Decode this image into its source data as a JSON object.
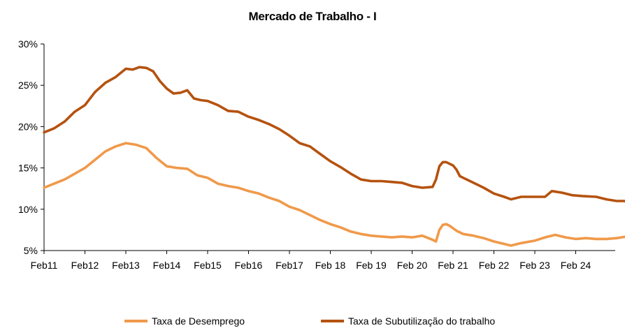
{
  "chart_data": {
    "type": "line",
    "title": "Mercado de Trabalho  -  I",
    "xlabel": "",
    "ylabel": "",
    "x_ticks": [
      "Feb11",
      "Feb12",
      "Feb13",
      "Feb14",
      "Feb15",
      "Feb16",
      "Feb17",
      "Feb 18",
      "Feb 19",
      "Feb 20",
      "Feb 21",
      "Feb 22",
      "Feb 23",
      "Feb 24"
    ],
    "ylim": [
      5,
      30
    ],
    "y_ticks": [
      "5%",
      "10%",
      "15%",
      "20%",
      "25%",
      "30%"
    ],
    "grid": "none",
    "legend_position": "bottom",
    "series": [
      {
        "name": "Taxa de Desemprego",
        "color": "#F0994A",
        "points": [
          [
            0,
            12.6
          ],
          [
            3,
            13.1
          ],
          [
            6,
            13.6
          ],
          [
            9,
            14.3
          ],
          [
            12,
            15.0
          ],
          [
            15,
            16.0
          ],
          [
            18,
            17.0
          ],
          [
            21,
            17.6
          ],
          [
            24,
            18.0
          ],
          [
            27,
            17.8
          ],
          [
            30,
            17.4
          ],
          [
            33,
            16.2
          ],
          [
            36,
            15.2
          ],
          [
            39,
            15.0
          ],
          [
            42,
            14.9
          ],
          [
            45,
            14.1
          ],
          [
            48,
            13.8
          ],
          [
            51,
            13.1
          ],
          [
            54,
            12.8
          ],
          [
            57,
            12.6
          ],
          [
            60,
            12.2
          ],
          [
            63,
            11.9
          ],
          [
            66,
            11.4
          ],
          [
            69,
            11.0
          ],
          [
            72,
            10.3
          ],
          [
            75,
            9.9
          ],
          [
            78,
            9.3
          ],
          [
            81,
            8.7
          ],
          [
            84,
            8.2
          ],
          [
            87,
            7.8
          ],
          [
            90,
            7.3
          ],
          [
            93,
            7.0
          ],
          [
            96,
            6.8
          ],
          [
            99,
            6.7
          ],
          [
            102,
            6.6
          ],
          [
            105,
            6.7
          ],
          [
            108,
            6.6
          ],
          [
            111,
            6.8
          ],
          [
            114,
            6.3
          ],
          [
            115,
            6.1
          ],
          [
            116,
            7.5
          ],
          [
            117,
            8.1
          ],
          [
            118,
            8.2
          ],
          [
            119,
            8.0
          ],
          [
            120,
            7.7
          ],
          [
            121,
            7.4
          ],
          [
            123,
            7.0
          ],
          [
            126,
            6.8
          ],
          [
            129,
            6.5
          ],
          [
            132,
            6.1
          ],
          [
            135,
            5.8
          ],
          [
            137,
            5.6
          ],
          [
            140,
            5.9
          ],
          [
            144,
            6.2
          ],
          [
            147,
            6.6
          ],
          [
            150,
            6.9
          ],
          [
            153,
            6.6
          ],
          [
            156,
            6.4
          ],
          [
            159,
            6.5
          ],
          [
            162,
            6.4
          ],
          [
            165,
            6.4
          ],
          [
            168,
            6.5
          ],
          [
            171,
            6.7
          ],
          [
            173,
            6.5
          ]
        ]
      },
      {
        "name": "Taxa de Subutilização do trabalho",
        "color": "#B5520F",
        "points": [
          [
            0,
            19.3
          ],
          [
            3,
            19.8
          ],
          [
            6,
            20.6
          ],
          [
            9,
            21.8
          ],
          [
            12,
            22.6
          ],
          [
            15,
            24.2
          ],
          [
            18,
            25.3
          ],
          [
            21,
            26.0
          ],
          [
            24,
            27.0
          ],
          [
            26,
            26.9
          ],
          [
            28,
            27.2
          ],
          [
            30,
            27.1
          ],
          [
            32,
            26.7
          ],
          [
            34,
            25.5
          ],
          [
            36,
            24.6
          ],
          [
            38,
            24.0
          ],
          [
            40,
            24.1
          ],
          [
            42,
            24.4
          ],
          [
            44,
            23.4
          ],
          [
            46,
            23.2
          ],
          [
            48,
            23.1
          ],
          [
            51,
            22.6
          ],
          [
            54,
            21.9
          ],
          [
            57,
            21.8
          ],
          [
            60,
            21.2
          ],
          [
            63,
            20.8
          ],
          [
            66,
            20.3
          ],
          [
            69,
            19.7
          ],
          [
            72,
            18.9
          ],
          [
            75,
            18.0
          ],
          [
            78,
            17.6
          ],
          [
            81,
            16.7
          ],
          [
            84,
            15.8
          ],
          [
            87,
            15.1
          ],
          [
            90,
            14.3
          ],
          [
            93,
            13.6
          ],
          [
            96,
            13.4
          ],
          [
            99,
            13.4
          ],
          [
            102,
            13.3
          ],
          [
            105,
            13.2
          ],
          [
            108,
            12.8
          ],
          [
            111,
            12.6
          ],
          [
            114,
            12.7
          ],
          [
            115,
            13.6
          ],
          [
            116,
            15.2
          ],
          [
            117,
            15.7
          ],
          [
            118,
            15.7
          ],
          [
            119,
            15.5
          ],
          [
            120,
            15.3
          ],
          [
            121,
            14.8
          ],
          [
            122,
            14.0
          ],
          [
            123,
            13.8
          ],
          [
            126,
            13.2
          ],
          [
            129,
            12.6
          ],
          [
            132,
            11.9
          ],
          [
            135,
            11.5
          ],
          [
            137,
            11.2
          ],
          [
            140,
            11.5
          ],
          [
            144,
            11.5
          ],
          [
            147,
            11.5
          ],
          [
            149,
            12.2
          ],
          [
            152,
            12.0
          ],
          [
            155,
            11.7
          ],
          [
            158,
            11.6
          ],
          [
            162,
            11.5
          ],
          [
            165,
            11.2
          ],
          [
            168,
            11.0
          ],
          [
            170,
            11.0
          ],
          [
            173,
            10.9
          ]
        ]
      }
    ]
  }
}
